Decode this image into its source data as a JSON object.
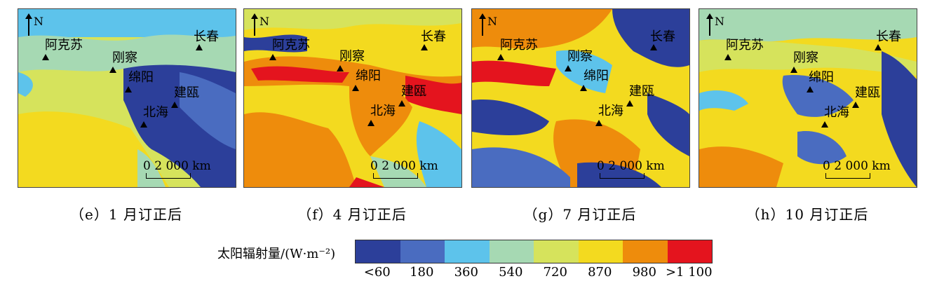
{
  "panels": [
    {
      "caption": "（e）1 月订正后",
      "north": "N",
      "scale": "0    2 000 km"
    },
    {
      "caption": "（f）4 月订正后",
      "north": "N",
      "scale": "0    2 000 km"
    },
    {
      "caption": "（g）7 月订正后",
      "north": "N",
      "scale": "0    2 000 km"
    },
    {
      "caption": "（h）10 月订正后",
      "north": "N",
      "scale": "0    2 000 km"
    }
  ],
  "cities": [
    "阿克苏",
    "刚察",
    "绵阳",
    "建瓯",
    "北海",
    "长春"
  ],
  "legend": {
    "title": "太阳辐射量/(W·m⁻²)",
    "ticks": [
      "<60",
      "180",
      "360",
      "540",
      "720",
      "870",
      "980",
      ">1 100"
    ],
    "colors": [
      "#2c3f9a",
      "#4a6cc0",
      "#5dc3eb",
      "#a6d9b3",
      "#d6e35c",
      "#f3da1f",
      "#ee8c0c",
      "#e4141e"
    ]
  }
}
